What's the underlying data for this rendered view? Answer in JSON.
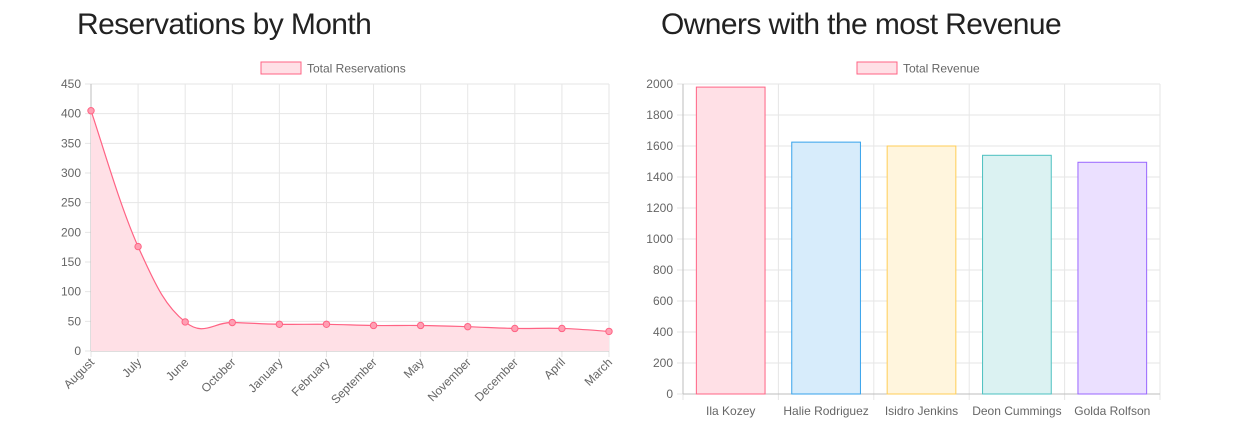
{
  "charts": [
    {
      "heading": "Reservations by Month",
      "chart_data": {
        "type": "line",
        "categories": [
          "August",
          "July",
          "June",
          "October",
          "January",
          "February",
          "September",
          "May",
          "November",
          "December",
          "April",
          "March"
        ],
        "series": [
          {
            "name": "Total Reservations",
            "values": [
              405,
              176,
              49,
              48,
              45,
              45,
              43,
              43,
              41,
              38,
              38,
              33
            ]
          }
        ],
        "ylim": [
          0,
          450
        ],
        "yticks": [
          0,
          50,
          100,
          150,
          200,
          250,
          300,
          350,
          400,
          450
        ],
        "grid": true,
        "legend": "top",
        "fill": true,
        "colors": {
          "line": "#ff6384",
          "fill": "#ffe0e6",
          "point_fill": "#ff9fb3"
        }
      }
    },
    {
      "heading": "Owners with the most Revenue",
      "chart_data": {
        "type": "bar",
        "categories": [
          "Ila Kozey",
          "Halie Rodriguez",
          "Isidro Jenkins",
          "Deon Cummings",
          "Golda Rolfson"
        ],
        "series": [
          {
            "name": "Total Revenue",
            "values": [
              1980,
              1625,
              1600,
              1540,
              1495
            ]
          }
        ],
        "ylim": [
          0,
          2000
        ],
        "yticks": [
          0,
          200,
          400,
          600,
          800,
          1000,
          1200,
          1400,
          1600,
          1800,
          2000
        ],
        "grid": true,
        "legend": "top",
        "colors": {
          "bar_fills": [
            "#ffe0e6",
            "#d7ecfb",
            "#fff5dd",
            "#dbf2f2",
            "#ebe0ff"
          ],
          "bar_borders": [
            "#ff6384",
            "#36a2eb",
            "#ffcd56",
            "#4bc0c0",
            "#9966ff"
          ],
          "legend_fill": "#ffe0e6",
          "legend_border": "#ff6384"
        }
      }
    }
  ]
}
